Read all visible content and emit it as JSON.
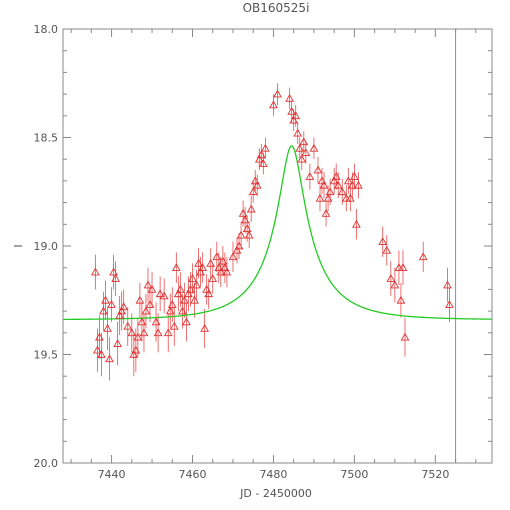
{
  "chart_data": {
    "type": "scatter",
    "title": "OB160525i",
    "xlabel": "JD - 2450000",
    "ylabel": "I",
    "xlim": [
      7428,
      7534
    ],
    "ylim": [
      20.0,
      18.0
    ],
    "y_inverted": true,
    "x_ticks": [
      7440,
      7460,
      7480,
      7500,
      7520
    ],
    "x_tick_labels": [
      "7440",
      "7460",
      "7480",
      "7500",
      "7520"
    ],
    "y_ticks": [
      18.0,
      18.5,
      19.0,
      19.5,
      20.0
    ],
    "y_tick_labels": [
      "18.0",
      "18.5",
      "19.0",
      "19.5",
      "20.0"
    ],
    "grid": false,
    "vertical_marker": {
      "x": 7525,
      "color": "#8888cc"
    },
    "series": [
      {
        "kind": "points",
        "marker": "triangle",
        "color": "#e03030",
        "data": [
          {
            "x": 7436,
            "y": 19.12,
            "err": 0.08
          },
          {
            "x": 7436.5,
            "y": 19.48,
            "err": 0.1
          },
          {
            "x": 7437,
            "y": 19.42,
            "err": 0.1
          },
          {
            "x": 7437.5,
            "y": 19.5,
            "err": 0.1
          },
          {
            "x": 7438,
            "y": 19.3,
            "err": 0.09
          },
          {
            "x": 7438.5,
            "y": 19.25,
            "err": 0.09
          },
          {
            "x": 7439,
            "y": 19.38,
            "err": 0.1
          },
          {
            "x": 7439.5,
            "y": 19.52,
            "err": 0.1
          },
          {
            "x": 7440,
            "y": 19.27,
            "err": 0.08
          },
          {
            "x": 7440.5,
            "y": 19.12,
            "err": 0.08
          },
          {
            "x": 7441,
            "y": 19.15,
            "err": 0.08
          },
          {
            "x": 7441.5,
            "y": 19.45,
            "err": 0.1
          },
          {
            "x": 7442,
            "y": 19.32,
            "err": 0.09
          },
          {
            "x": 7442.5,
            "y": 19.3,
            "err": 0.09
          },
          {
            "x": 7443,
            "y": 19.28,
            "err": 0.08
          },
          {
            "x": 7444,
            "y": 19.37,
            "err": 0.09
          },
          {
            "x": 7445,
            "y": 19.4,
            "err": 0.09
          },
          {
            "x": 7445.5,
            "y": 19.5,
            "err": 0.1
          },
          {
            "x": 7446,
            "y": 19.48,
            "err": 0.1
          },
          {
            "x": 7446.5,
            "y": 19.42,
            "err": 0.09
          },
          {
            "x": 7447,
            "y": 19.25,
            "err": 0.08
          },
          {
            "x": 7447.5,
            "y": 19.35,
            "err": 0.09
          },
          {
            "x": 7448,
            "y": 19.4,
            "err": 0.09
          },
          {
            "x": 7448.5,
            "y": 19.3,
            "err": 0.08
          },
          {
            "x": 7449,
            "y": 19.18,
            "err": 0.08
          },
          {
            "x": 7449.5,
            "y": 19.27,
            "err": 0.08
          },
          {
            "x": 7450,
            "y": 19.2,
            "err": 0.08
          },
          {
            "x": 7451,
            "y": 19.35,
            "err": 0.09
          },
          {
            "x": 7451.5,
            "y": 19.4,
            "err": 0.09
          },
          {
            "x": 7452,
            "y": 19.22,
            "err": 0.08
          },
          {
            "x": 7453,
            "y": 19.23,
            "err": 0.08
          },
          {
            "x": 7454,
            "y": 19.4,
            "err": 0.09
          },
          {
            "x": 7454.5,
            "y": 19.3,
            "err": 0.08
          },
          {
            "x": 7455,
            "y": 19.27,
            "err": 0.08
          },
          {
            "x": 7455.5,
            "y": 19.37,
            "err": 0.09
          },
          {
            "x": 7456,
            "y": 19.1,
            "err": 0.07
          },
          {
            "x": 7456.5,
            "y": 19.22,
            "err": 0.08
          },
          {
            "x": 7457,
            "y": 19.2,
            "err": 0.08
          },
          {
            "x": 7457.5,
            "y": 19.3,
            "err": 0.08
          },
          {
            "x": 7458,
            "y": 19.25,
            "err": 0.08
          },
          {
            "x": 7458.5,
            "y": 19.35,
            "err": 0.09
          },
          {
            "x": 7459,
            "y": 19.22,
            "err": 0.08
          },
          {
            "x": 7459.5,
            "y": 19.2,
            "err": 0.08
          },
          {
            "x": 7460,
            "y": 19.15,
            "err": 0.07
          },
          {
            "x": 7460.5,
            "y": 19.25,
            "err": 0.08
          },
          {
            "x": 7461,
            "y": 19.18,
            "err": 0.07
          },
          {
            "x": 7461.5,
            "y": 19.08,
            "err": 0.07
          },
          {
            "x": 7462,
            "y": 19.12,
            "err": 0.07
          },
          {
            "x": 7462.5,
            "y": 19.1,
            "err": 0.07
          },
          {
            "x": 7463,
            "y": 19.38,
            "err": 0.09
          },
          {
            "x": 7463.5,
            "y": 19.2,
            "err": 0.07
          },
          {
            "x": 7464,
            "y": 19.22,
            "err": 0.07
          },
          {
            "x": 7464.5,
            "y": 19.08,
            "err": 0.07
          },
          {
            "x": 7465,
            "y": 19.15,
            "err": 0.07
          },
          {
            "x": 7466,
            "y": 19.05,
            "err": 0.07
          },
          {
            "x": 7466.5,
            "y": 19.1,
            "err": 0.07
          },
          {
            "x": 7467,
            "y": 19.12,
            "err": 0.07
          },
          {
            "x": 7467.5,
            "y": 19.07,
            "err": 0.07
          },
          {
            "x": 7468,
            "y": 19.1,
            "err": 0.07
          },
          {
            "x": 7468.5,
            "y": 19.12,
            "err": 0.07
          },
          {
            "x": 7470,
            "y": 19.05,
            "err": 0.07
          },
          {
            "x": 7471,
            "y": 19.02,
            "err": 0.06
          },
          {
            "x": 7471.5,
            "y": 19.0,
            "err": 0.06
          },
          {
            "x": 7472,
            "y": 18.95,
            "err": 0.06
          },
          {
            "x": 7472.5,
            "y": 18.85,
            "err": 0.06
          },
          {
            "x": 7473,
            "y": 18.88,
            "err": 0.06
          },
          {
            "x": 7473.5,
            "y": 18.92,
            "err": 0.06
          },
          {
            "x": 7474,
            "y": 18.95,
            "err": 0.06
          },
          {
            "x": 7474.5,
            "y": 18.83,
            "err": 0.06
          },
          {
            "x": 7475,
            "y": 18.75,
            "err": 0.05
          },
          {
            "x": 7475.5,
            "y": 18.7,
            "err": 0.05
          },
          {
            "x": 7476,
            "y": 18.72,
            "err": 0.05
          },
          {
            "x": 7476.5,
            "y": 18.6,
            "err": 0.05
          },
          {
            "x": 7477,
            "y": 18.58,
            "err": 0.05
          },
          {
            "x": 7477.5,
            "y": 18.62,
            "err": 0.05
          },
          {
            "x": 7478,
            "y": 18.55,
            "err": 0.05
          },
          {
            "x": 7480,
            "y": 18.35,
            "err": 0.05
          },
          {
            "x": 7481,
            "y": 18.3,
            "err": 0.05
          },
          {
            "x": 7484,
            "y": 18.32,
            "err": 0.05
          },
          {
            "x": 7484.5,
            "y": 18.38,
            "err": 0.05
          },
          {
            "x": 7485,
            "y": 18.42,
            "err": 0.05
          },
          {
            "x": 7485.5,
            "y": 18.4,
            "err": 0.05
          },
          {
            "x": 7486,
            "y": 18.48,
            "err": 0.05
          },
          {
            "x": 7486.5,
            "y": 18.55,
            "err": 0.05
          },
          {
            "x": 7487,
            "y": 18.6,
            "err": 0.05
          },
          {
            "x": 7487.5,
            "y": 18.52,
            "err": 0.05
          },
          {
            "x": 7488,
            "y": 18.57,
            "err": 0.05
          },
          {
            "x": 7489,
            "y": 18.68,
            "err": 0.06
          },
          {
            "x": 7490,
            "y": 18.55,
            "err": 0.05
          },
          {
            "x": 7491,
            "y": 18.65,
            "err": 0.06
          },
          {
            "x": 7491.5,
            "y": 18.78,
            "err": 0.06
          },
          {
            "x": 7492,
            "y": 18.7,
            "err": 0.06
          },
          {
            "x": 7492.5,
            "y": 18.72,
            "err": 0.06
          },
          {
            "x": 7493,
            "y": 18.85,
            "err": 0.06
          },
          {
            "x": 7493.5,
            "y": 18.78,
            "err": 0.06
          },
          {
            "x": 7494,
            "y": 18.75,
            "err": 0.06
          },
          {
            "x": 7495,
            "y": 18.7,
            "err": 0.06
          },
          {
            "x": 7495.5,
            "y": 18.68,
            "err": 0.06
          },
          {
            "x": 7496,
            "y": 18.72,
            "err": 0.06
          },
          {
            "x": 7497,
            "y": 18.75,
            "err": 0.06
          },
          {
            "x": 7498,
            "y": 18.78,
            "err": 0.06
          },
          {
            "x": 7498.5,
            "y": 18.7,
            "err": 0.06
          },
          {
            "x": 7499,
            "y": 18.78,
            "err": 0.06
          },
          {
            "x": 7499.5,
            "y": 18.72,
            "err": 0.06
          },
          {
            "x": 7500,
            "y": 18.68,
            "err": 0.06
          },
          {
            "x": 7500.5,
            "y": 18.9,
            "err": 0.07
          },
          {
            "x": 7501,
            "y": 18.72,
            "err": 0.06
          },
          {
            "x": 7507,
            "y": 18.98,
            "err": 0.07
          },
          {
            "x": 7508,
            "y": 19.02,
            "err": 0.07
          },
          {
            "x": 7509,
            "y": 19.15,
            "err": 0.08
          },
          {
            "x": 7510,
            "y": 19.18,
            "err": 0.08
          },
          {
            "x": 7511,
            "y": 19.1,
            "err": 0.08
          },
          {
            "x": 7511.5,
            "y": 19.25,
            "err": 0.08
          },
          {
            "x": 7512,
            "y": 19.1,
            "err": 0.08
          },
          {
            "x": 7512.5,
            "y": 19.42,
            "err": 0.09
          },
          {
            "x": 7517,
            "y": 19.05,
            "err": 0.07
          },
          {
            "x": 7523,
            "y": 19.18,
            "err": 0.08
          },
          {
            "x": 7523.5,
            "y": 19.27,
            "err": 0.08
          }
        ]
      },
      {
        "kind": "curve",
        "color": "#22cc22",
        "model": "paczynski",
        "params": {
          "t0": 7484.5,
          "u0": 0.2,
          "tE": 14,
          "baseline": 19.34,
          "fs": 0.268
        }
      }
    ]
  }
}
